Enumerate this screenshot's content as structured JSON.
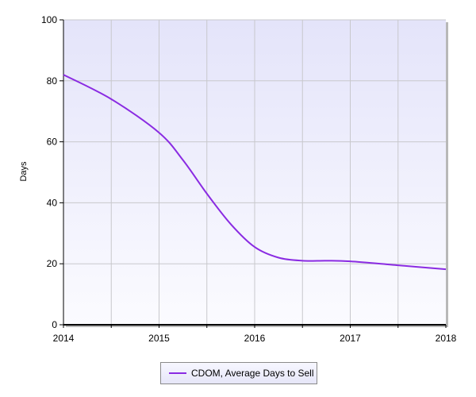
{
  "colors": {
    "plot_background_top": "#e4e4fa",
    "plot_background_bottom": "#fbfbff",
    "gridline": "#c8c8cc",
    "axis": "#000000",
    "line": "#8a2be2"
  },
  "chart_data": {
    "type": "line",
    "title": "",
    "xlabel": "",
    "ylabel": "Days",
    "xlim": [
      2014,
      2018
    ],
    "ylim": [
      0,
      100
    ],
    "x_ticks": [
      "2014",
      "2015",
      "2016",
      "2017",
      "2018"
    ],
    "y_ticks": [
      "0",
      "20",
      "40",
      "60",
      "80",
      "100"
    ],
    "grid": true,
    "legend_position": "bottom-center",
    "series": [
      {
        "name": "CDOM, Average Days to Sell",
        "color": "#8a2be2",
        "x": [
          2014.0,
          2014.5,
          2015.0,
          2015.25,
          2015.5,
          2015.75,
          2016.0,
          2016.25,
          2016.5,
          2016.75,
          2017.0,
          2017.5,
          2018.0
        ],
        "y": [
          82,
          74,
          63,
          54,
          43,
          33,
          25.5,
          22,
          21,
          21,
          20.8,
          19.5,
          18.2
        ]
      }
    ]
  }
}
